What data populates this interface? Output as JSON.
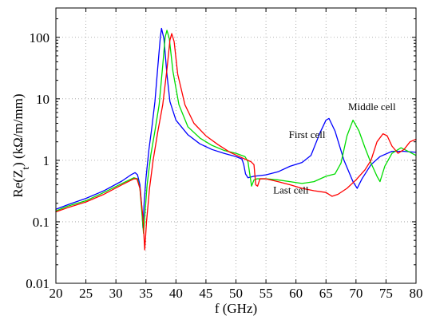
{
  "chart_data": {
    "type": "line",
    "title": "",
    "xlabel": "f (GHz)",
    "ylabel": "Re(Z",
    "ylabel_sub": "t",
    "ylabel_unit": ") (kΩ/m/mm)",
    "xlim": [
      20,
      80
    ],
    "ylim": [
      0.01,
      300
    ],
    "yscale": "log",
    "grid": true,
    "x_ticks": [
      20,
      25,
      30,
      35,
      40,
      45,
      50,
      55,
      60,
      65,
      70,
      75,
      80
    ],
    "x_tick_labels": [
      "20",
      "25",
      "30",
      "35",
      "40",
      "45",
      "50",
      "55",
      "60",
      "65",
      "70",
      "75",
      "80"
    ],
    "y_ticks": [
      0.01,
      0.1,
      1,
      10,
      100
    ],
    "y_tick_labels": [
      "0.01",
      "0.1",
      "1",
      "10",
      "100"
    ],
    "series": [
      {
        "name": "First cell",
        "color": "#0000ff",
        "points": [
          [
            20,
            0.16
          ],
          [
            22,
            0.19
          ],
          [
            25,
            0.24
          ],
          [
            28,
            0.32
          ],
          [
            31,
            0.46
          ],
          [
            32.5,
            0.58
          ],
          [
            33.2,
            0.63
          ],
          [
            33.6,
            0.58
          ],
          [
            34,
            0.4
          ],
          [
            34.3,
            0.18
          ],
          [
            34.5,
            0.08
          ],
          [
            34.7,
            0.2
          ],
          [
            35,
            0.5
          ],
          [
            35.5,
            1.5
          ],
          [
            36,
            3.5
          ],
          [
            36.5,
            9
          ],
          [
            37,
            35
          ],
          [
            37.4,
            100
          ],
          [
            37.6,
            140
          ],
          [
            38,
            95
          ],
          [
            38.5,
            25
          ],
          [
            39,
            9
          ],
          [
            40,
            4.5
          ],
          [
            42,
            2.6
          ],
          [
            44,
            1.85
          ],
          [
            46,
            1.5
          ],
          [
            48,
            1.3
          ],
          [
            50,
            1.15
          ],
          [
            51,
            1.05
          ],
          [
            51.3,
            0.85
          ],
          [
            51.6,
            0.6
          ],
          [
            52,
            0.52
          ],
          [
            53,
            0.55
          ],
          [
            55,
            0.58
          ],
          [
            57,
            0.65
          ],
          [
            59,
            0.8
          ],
          [
            61,
            0.92
          ],
          [
            62.5,
            1.2
          ],
          [
            64,
            2.8
          ],
          [
            65,
            4.5
          ],
          [
            65.5,
            4.8
          ],
          [
            66.5,
            3
          ],
          [
            68,
            1
          ],
          [
            69.5,
            0.45
          ],
          [
            70.2,
            0.35
          ],
          [
            71,
            0.5
          ],
          [
            72.5,
            0.85
          ],
          [
            74,
            1.15
          ],
          [
            76,
            1.4
          ],
          [
            78,
            1.4
          ],
          [
            80,
            1.35
          ]
        ]
      },
      {
        "name": "",
        "color": "#00dd00",
        "points": [
          [
            20,
            0.15
          ],
          [
            22,
            0.18
          ],
          [
            25,
            0.22
          ],
          [
            28,
            0.3
          ],
          [
            31,
            0.42
          ],
          [
            33,
            0.52
          ],
          [
            33.6,
            0.5
          ],
          [
            34,
            0.35
          ],
          [
            34.3,
            0.15
          ],
          [
            34.6,
            0.065
          ],
          [
            34.8,
            0.12
          ],
          [
            35.2,
            0.4
          ],
          [
            35.8,
            1.2
          ],
          [
            36.5,
            3
          ],
          [
            37.2,
            8
          ],
          [
            37.8,
            35
          ],
          [
            38.2,
            100
          ],
          [
            38.5,
            130
          ],
          [
            38.9,
            95
          ],
          [
            39.5,
            28
          ],
          [
            40.5,
            8
          ],
          [
            42,
            3.5
          ],
          [
            44,
            2.3
          ],
          [
            46,
            1.75
          ],
          [
            48,
            1.45
          ],
          [
            50,
            1.3
          ],
          [
            51.5,
            1.15
          ],
          [
            52,
            0.95
          ],
          [
            52.3,
            0.6
          ],
          [
            52.6,
            0.38
          ],
          [
            53,
            0.48
          ],
          [
            53.5,
            0.5
          ],
          [
            55,
            0.5
          ],
          [
            57,
            0.48
          ],
          [
            59,
            0.45
          ],
          [
            61,
            0.42
          ],
          [
            63,
            0.45
          ],
          [
            65,
            0.55
          ],
          [
            66.5,
            0.6
          ],
          [
            67.5,
            0.9
          ],
          [
            68.5,
            2.5
          ],
          [
            69.5,
            4.5
          ],
          [
            70.5,
            3
          ],
          [
            71.5,
            1.6
          ],
          [
            72.5,
            0.9
          ],
          [
            73.5,
            0.55
          ],
          [
            74,
            0.45
          ],
          [
            74.8,
            0.8
          ],
          [
            76,
            1.3
          ],
          [
            77.5,
            1.6
          ],
          [
            79,
            1.35
          ],
          [
            80,
            1.2
          ]
        ]
      },
      {
        "name": "",
        "color": "#ff0000",
        "points": [
          [
            20,
            0.145
          ],
          [
            22,
            0.17
          ],
          [
            25,
            0.21
          ],
          [
            28,
            0.28
          ],
          [
            31,
            0.4
          ],
          [
            33,
            0.5
          ],
          [
            33.5,
            0.5
          ],
          [
            34,
            0.35
          ],
          [
            34.5,
            0.12
          ],
          [
            34.8,
            0.035
          ],
          [
            35.1,
            0.1
          ],
          [
            35.6,
            0.35
          ],
          [
            36.2,
            1
          ],
          [
            37,
            3
          ],
          [
            37.8,
            8
          ],
          [
            38.5,
            30
          ],
          [
            39,
            90
          ],
          [
            39.3,
            115
          ],
          [
            39.7,
            85
          ],
          [
            40.3,
            25
          ],
          [
            41.5,
            8
          ],
          [
            43,
            4
          ],
          [
            45,
            2.5
          ],
          [
            47,
            1.8
          ],
          [
            49,
            1.35
          ],
          [
            51,
            1.1
          ],
          [
            52.5,
            0.95
          ],
          [
            53,
            0.85
          ],
          [
            53.3,
            0.4
          ],
          [
            53.6,
            0.38
          ],
          [
            54,
            0.5
          ],
          [
            55,
            0.5
          ],
          [
            57,
            0.45
          ],
          [
            59,
            0.4
          ],
          [
            61,
            0.35
          ],
          [
            63,
            0.32
          ],
          [
            65,
            0.3
          ],
          [
            66,
            0.26
          ],
          [
            67,
            0.28
          ],
          [
            68.5,
            0.35
          ],
          [
            70,
            0.48
          ],
          [
            71.5,
            0.7
          ],
          [
            72.5,
            1
          ],
          [
            73.5,
            2
          ],
          [
            74.5,
            2.7
          ],
          [
            75.2,
            2.5
          ],
          [
            76,
            1.7
          ],
          [
            77,
            1.3
          ],
          [
            78,
            1.5
          ],
          [
            79,
            2
          ],
          [
            80,
            2.2
          ]
        ]
      }
    ],
    "annotations": [
      {
        "text": "First cell",
        "x": 58.8,
        "y": 2.3
      },
      {
        "text": "Middle cell",
        "x": 68.7,
        "y": 6.5
      },
      {
        "text": "Last cell",
        "x": 56.2,
        "y": 0.29
      }
    ]
  }
}
